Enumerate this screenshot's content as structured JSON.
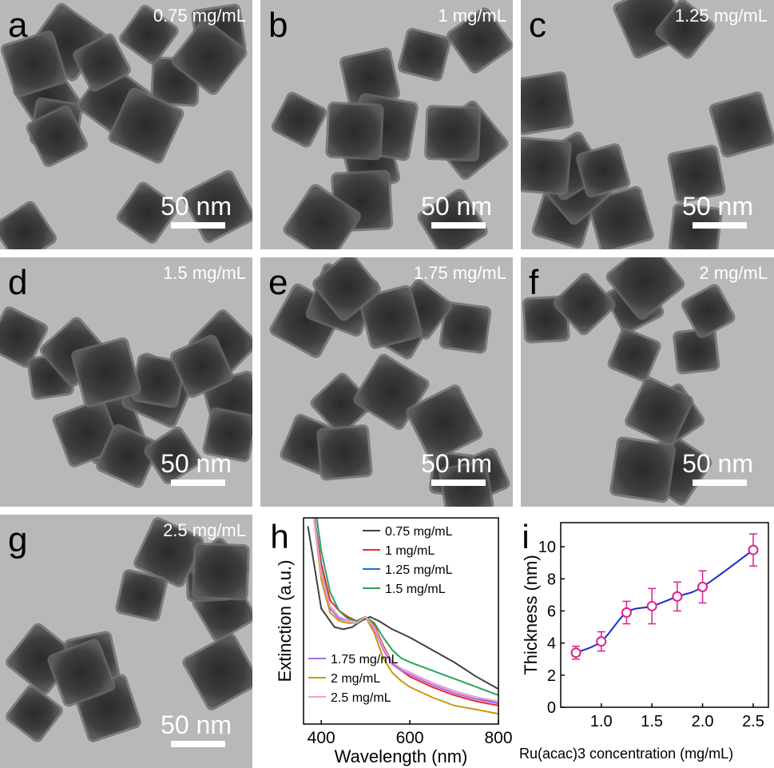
{
  "scale_bar_text": "50 nm",
  "panels": [
    {
      "id": "a",
      "label": "a",
      "concentration": "0.75 mg/mL"
    },
    {
      "id": "b",
      "label": "b",
      "concentration": "1 mg/mL"
    },
    {
      "id": "c",
      "label": "c",
      "concentration": "1.25 mg/mL"
    },
    {
      "id": "d",
      "label": "d",
      "concentration": "1.5 mg/mL"
    },
    {
      "id": "e",
      "label": "e",
      "concentration": "1.75 mg/mL"
    },
    {
      "id": "f",
      "label": "f",
      "concentration": "2 mg/mL"
    },
    {
      "id": "g",
      "label": "g",
      "concentration": "2.5 mg/mL"
    }
  ],
  "chart_data": [
    {
      "panel_label": "h",
      "type": "line",
      "xlabel": "Wavelength (nm)",
      "ylabel": "Extinction (a.u.)",
      "xlim": [
        360,
        800
      ],
      "ylim": [
        0,
        1
      ],
      "x_ticks": [
        400,
        600,
        800
      ],
      "grid": false,
      "legend": "top-right and bottom-left",
      "series": [
        {
          "name": "0.75 mg/mL",
          "color": "#404040",
          "x": [
            370,
            400,
            430,
            450,
            470,
            490,
            510,
            530,
            560,
            600,
            650,
            700,
            750,
            800
          ],
          "y": [
            0.96,
            0.56,
            0.47,
            0.46,
            0.47,
            0.5,
            0.52,
            0.5,
            0.46,
            0.42,
            0.36,
            0.3,
            0.23,
            0.17
          ]
        },
        {
          "name": "1 mg/mL",
          "color": "#ee2a2a",
          "x": [
            385,
            400,
            420,
            440,
            460,
            480,
            500,
            520,
            540,
            560,
            580,
            600,
            650,
            700,
            750,
            800
          ],
          "y": [
            1.0,
            0.78,
            0.6,
            0.55,
            0.52,
            0.5,
            0.52,
            0.48,
            0.38,
            0.3,
            0.26,
            0.23,
            0.18,
            0.14,
            0.11,
            0.09
          ]
        },
        {
          "name": "1.25 mg/mL",
          "color": "#1e6fd0",
          "x": [
            385,
            400,
            420,
            440,
            460,
            480,
            500,
            520,
            540,
            560,
            580,
            600,
            650,
            700,
            750,
            800
          ],
          "y": [
            1.0,
            0.74,
            0.57,
            0.52,
            0.5,
            0.49,
            0.52,
            0.47,
            0.37,
            0.3,
            0.27,
            0.25,
            0.2,
            0.16,
            0.13,
            0.1
          ]
        },
        {
          "name": "1.5 mg/mL",
          "color": "#2aa35a",
          "x": [
            390,
            400,
            420,
            440,
            460,
            480,
            500,
            520,
            540,
            560,
            580,
            600,
            650,
            700,
            750,
            800
          ],
          "y": [
            1.0,
            0.84,
            0.64,
            0.55,
            0.51,
            0.5,
            0.52,
            0.49,
            0.42,
            0.36,
            0.32,
            0.3,
            0.26,
            0.22,
            0.18,
            0.14
          ]
        },
        {
          "name": "1.75 mg/mL",
          "color": "#a86be8",
          "x": [
            385,
            400,
            420,
            440,
            460,
            480,
            500,
            520,
            540,
            560,
            580,
            600,
            650,
            700,
            750,
            800
          ],
          "y": [
            1.0,
            0.72,
            0.56,
            0.51,
            0.5,
            0.49,
            0.52,
            0.46,
            0.36,
            0.29,
            0.26,
            0.24,
            0.19,
            0.15,
            0.12,
            0.1
          ]
        },
        {
          "name": "2 mg/mL",
          "color": "#c99a0c",
          "x": [
            383,
            400,
            420,
            440,
            460,
            480,
            500,
            520,
            540,
            560,
            580,
            600,
            650,
            700,
            750,
            800
          ],
          "y": [
            1.0,
            0.7,
            0.54,
            0.5,
            0.49,
            0.49,
            0.52,
            0.44,
            0.32,
            0.25,
            0.21,
            0.18,
            0.13,
            0.09,
            0.07,
            0.05
          ]
        },
        {
          "name": "2.5 mg/mL",
          "color": "#f0a0d0",
          "x": [
            383,
            400,
            420,
            440,
            460,
            480,
            500,
            520,
            540,
            560,
            580,
            600,
            650,
            700,
            750,
            800
          ],
          "y": [
            1.0,
            0.73,
            0.57,
            0.52,
            0.5,
            0.49,
            0.52,
            0.47,
            0.37,
            0.3,
            0.27,
            0.25,
            0.2,
            0.16,
            0.13,
            0.11
          ]
        }
      ]
    },
    {
      "panel_label": "i",
      "type": "scatter",
      "xlabel": "Ru(acac)3 concentration (mg/mL)",
      "ylabel": "Thickness (nm)",
      "xlim": [
        0.6,
        2.65
      ],
      "ylim": [
        0,
        11.5
      ],
      "x_ticks": [
        1.0,
        1.5,
        2.0,
        2.5
      ],
      "y_ticks": [
        0,
        2,
        4,
        6,
        8,
        10
      ],
      "grid": false,
      "marker_color": "#e0208a",
      "fit_color": "#1a2ad0",
      "points": [
        {
          "x": 0.75,
          "y": 3.4,
          "err": 0.4
        },
        {
          "x": 1.0,
          "y": 4.1,
          "err": 0.6
        },
        {
          "x": 1.25,
          "y": 5.9,
          "err": 0.7
        },
        {
          "x": 1.5,
          "y": 6.3,
          "err": 1.1
        },
        {
          "x": 1.75,
          "y": 6.9,
          "err": 0.9
        },
        {
          "x": 2.0,
          "y": 7.5,
          "err": 1.0
        },
        {
          "x": 2.5,
          "y": 9.8,
          "err": 1.0
        }
      ]
    }
  ]
}
